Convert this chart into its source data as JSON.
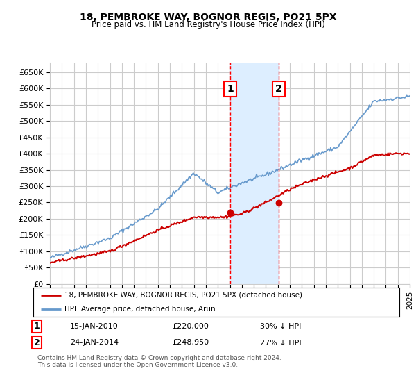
{
  "title": "18, PEMBROKE WAY, BOGNOR REGIS, PO21 5PX",
  "subtitle": "Price paid vs. HM Land Registry's House Price Index (HPI)",
  "legend_line1": "18, PEMBROKE WAY, BOGNOR REGIS, PO21 5PX (detached house)",
  "legend_line2": "HPI: Average price, detached house, Arun",
  "footnote": "Contains HM Land Registry data © Crown copyright and database right 2024.\nThis data is licensed under the Open Government Licence v3.0.",
  "sale1_label": "1",
  "sale1_date": "15-JAN-2010",
  "sale1_price": "£220,000",
  "sale1_hpi": "30% ↓ HPI",
  "sale2_label": "2",
  "sale2_date": "24-JAN-2014",
  "sale2_price": "£248,950",
  "sale2_hpi": "27% ↓ HPI",
  "hpi_color": "#6699cc",
  "price_color": "#cc0000",
  "sale_marker_color": "#cc0000",
  "grid_color": "#cccccc",
  "highlight_color": "#ddeeff",
  "sale1_x": 2010.04,
  "sale2_x": 2014.07,
  "ylim_min": 0,
  "ylim_max": 680000,
  "xlim_min": 1995,
  "xlim_max": 2025,
  "ytick_step": 50000,
  "background_color": "#ffffff",
  "hpi_anchors_x": [
    1995,
    2000,
    2004,
    2007,
    2009,
    2011,
    2013,
    2016,
    2019,
    2022,
    2024,
    2025
  ],
  "hpi_anchors_y": [
    80000,
    140000,
    230000,
    340000,
    280000,
    310000,
    335000,
    380000,
    420000,
    560000,
    570000,
    575000
  ],
  "price_anchors_x": [
    1995,
    2000,
    2004,
    2007,
    2009.5,
    2011,
    2013,
    2015,
    2017,
    2020,
    2022,
    2024,
    2025
  ],
  "price_anchors_y": [
    65000,
    100000,
    165000,
    205000,
    205000,
    215000,
    250000,
    290000,
    320000,
    355000,
    395000,
    400000,
    400000
  ],
  "sale1_price_y": 220000,
  "sale2_price_y": 248950
}
